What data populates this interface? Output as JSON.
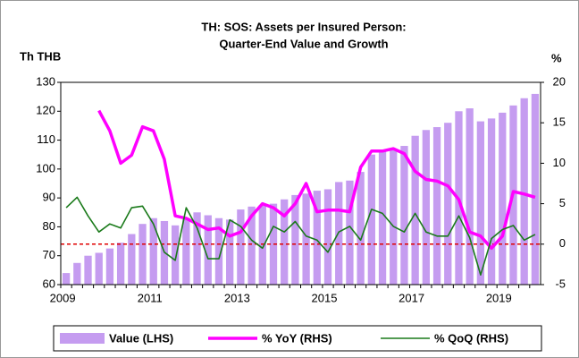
{
  "chart_data": {
    "type": "bar_line",
    "title": "TH: SOS: Assets per Insured Person:",
    "subtitle": "Quarter-End Value and Growth",
    "y_label": "Th THB",
    "y2_label": "%",
    "categories": [
      "2009",
      null,
      null,
      null,
      null,
      null,
      null,
      null,
      "2011",
      null,
      null,
      null,
      null,
      null,
      null,
      null,
      "2013",
      null,
      null,
      null,
      null,
      null,
      null,
      null,
      "2015",
      null,
      null,
      null,
      null,
      null,
      null,
      null,
      "2017",
      null,
      null,
      null,
      null,
      null,
      null,
      null,
      "2019",
      null,
      null,
      null
    ],
    "ylim": [
      60,
      130
    ],
    "yticks": [
      60,
      70,
      80,
      90,
      100,
      110,
      120,
      130
    ],
    "y2lim": [
      -5,
      20
    ],
    "y2ticks": [
      -5,
      0,
      5,
      10,
      15,
      20
    ],
    "hline_y2": 0,
    "series": [
      {
        "name": "Value (LHS)",
        "kind": "bar",
        "color": "#c59cf0",
        "values": [
          64,
          67.5,
          70,
          71,
          72.5,
          74.5,
          77.5,
          81,
          83,
          82,
          80.5,
          83,
          85,
          84,
          83,
          82.5,
          86,
          87,
          87.5,
          88,
          89.5,
          91,
          91.5,
          92.5,
          93,
          95.5,
          96,
          99,
          105,
          106,
          107,
          108,
          111.5,
          113.5,
          114.5,
          116,
          120,
          121,
          116.5,
          117.5,
          119.5,
          122,
          124.5,
          126
        ]
      },
      {
        "name": "% YoY (RHS)",
        "kind": "line",
        "axis": "y2",
        "color": "#ff00ff",
        "values": [
          null,
          null,
          null,
          16.5,
          14,
          10,
          11,
          14.5,
          14,
          10.5,
          3.5,
          3.2,
          2.5,
          1.8,
          2,
          1,
          1.5,
          3.5,
          5,
          4.5,
          3.5,
          5,
          7.5,
          4,
          4.2,
          4.2,
          4,
          9.5,
          11.5,
          11.5,
          11.8,
          11.2,
          9,
          8,
          7.8,
          7.2,
          5.5,
          1.5,
          1,
          -0.5,
          1,
          6.5,
          6.2,
          5.8
        ]
      },
      {
        "name": "% QoQ (RHS)",
        "kind": "line",
        "axis": "y2",
        "color": "#1a7a1a",
        "values": [
          4.5,
          5.8,
          3.5,
          1.5,
          2.5,
          2,
          4.5,
          4.7,
          2.5,
          -1,
          -2,
          4.5,
          2,
          -1.8,
          -1.8,
          3,
          2.2,
          0.5,
          -0.5,
          2.2,
          1.5,
          2.8,
          1,
          0.5,
          -1,
          1.5,
          2.2,
          0.5,
          4.3,
          3.8,
          2.2,
          1.5,
          3.8,
          1.5,
          1,
          1,
          3.5,
          0.8,
          -3.8,
          0.7,
          1.8,
          2.3,
          0.5,
          1.2
        ]
      }
    ]
  }
}
